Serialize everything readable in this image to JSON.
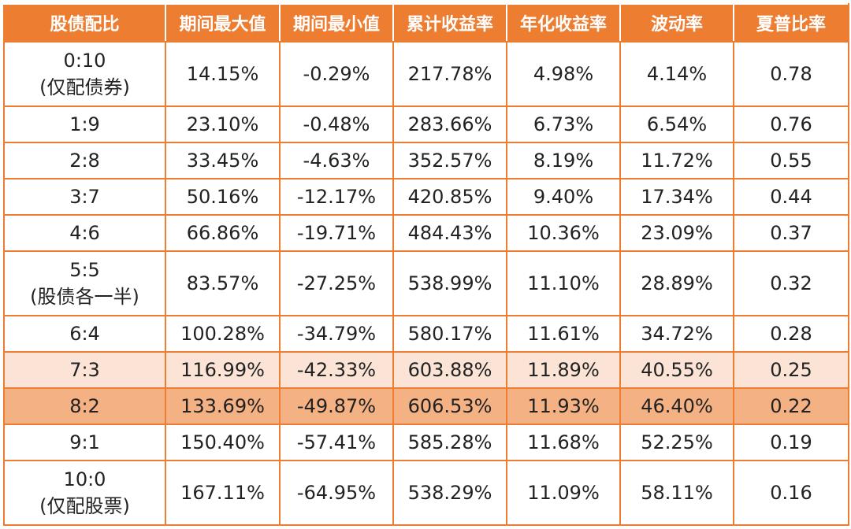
{
  "table": {
    "headers": [
      "股债配比",
      "期间最大值",
      "期间最小值",
      "累计收益率",
      "年化收益率",
      "波动率",
      "夏普比率"
    ],
    "rows": [
      {
        "ratio": "0:10",
        "ratio_note": "(仅配债券)",
        "max": "14.15%",
        "min": "-0.29%",
        "cumulative": "217.78%",
        "annualized": "4.98%",
        "volatility": "4.14%",
        "sharpe": "0.78",
        "highlight": "none"
      },
      {
        "ratio": "1:9",
        "ratio_note": "",
        "max": "23.10%",
        "min": "-0.48%",
        "cumulative": "283.66%",
        "annualized": "6.73%",
        "volatility": "6.54%",
        "sharpe": "0.76",
        "highlight": "none"
      },
      {
        "ratio": "2:8",
        "ratio_note": "",
        "max": "33.45%",
        "min": "-4.63%",
        "cumulative": "352.57%",
        "annualized": "8.19%",
        "volatility": "11.72%",
        "sharpe": "0.55",
        "highlight": "none"
      },
      {
        "ratio": "3:7",
        "ratio_note": "",
        "max": "50.16%",
        "min": "-12.17%",
        "cumulative": "420.85%",
        "annualized": "9.40%",
        "volatility": "17.34%",
        "sharpe": "0.44",
        "highlight": "none"
      },
      {
        "ratio": "4:6",
        "ratio_note": "",
        "max": "66.86%",
        "min": "-19.71%",
        "cumulative": "484.43%",
        "annualized": "10.36%",
        "volatility": "23.09%",
        "sharpe": "0.37",
        "highlight": "none"
      },
      {
        "ratio": "5:5",
        "ratio_note": "(股债各一半)",
        "max": "83.57%",
        "min": "-27.25%",
        "cumulative": "538.99%",
        "annualized": "11.10%",
        "volatility": "28.89%",
        "sharpe": "0.32",
        "highlight": "none"
      },
      {
        "ratio": "6:4",
        "ratio_note": "",
        "max": "100.28%",
        "min": "-34.79%",
        "cumulative": "580.17%",
        "annualized": "11.61%",
        "volatility": "34.72%",
        "sharpe": "0.28",
        "highlight": "none"
      },
      {
        "ratio": "7:3",
        "ratio_note": "",
        "max": "116.99%",
        "min": "-42.33%",
        "cumulative": "603.88%",
        "annualized": "11.89%",
        "volatility": "40.55%",
        "sharpe": "0.25",
        "highlight": "light"
      },
      {
        "ratio": "8:2",
        "ratio_note": "",
        "max": "133.69%",
        "min": "-49.87%",
        "cumulative": "606.53%",
        "annualized": "11.93%",
        "volatility": "46.40%",
        "sharpe": "0.22",
        "highlight": "dark"
      },
      {
        "ratio": "9:1",
        "ratio_note": "",
        "max": "150.40%",
        "min": "-57.41%",
        "cumulative": "585.28%",
        "annualized": "11.68%",
        "volatility": "52.25%",
        "sharpe": "0.19",
        "highlight": "none"
      },
      {
        "ratio": "10:0",
        "ratio_note": "(仅配股票)",
        "max": "167.11%",
        "min": "-64.95%",
        "cumulative": "538.29%",
        "annualized": "11.09%",
        "volatility": "58.11%",
        "sharpe": "0.16",
        "highlight": "none"
      }
    ]
  },
  "colors": {
    "accent": "#ed7d31",
    "highlight_light": "#fbe4d5",
    "highlight_dark": "#f4b183"
  }
}
